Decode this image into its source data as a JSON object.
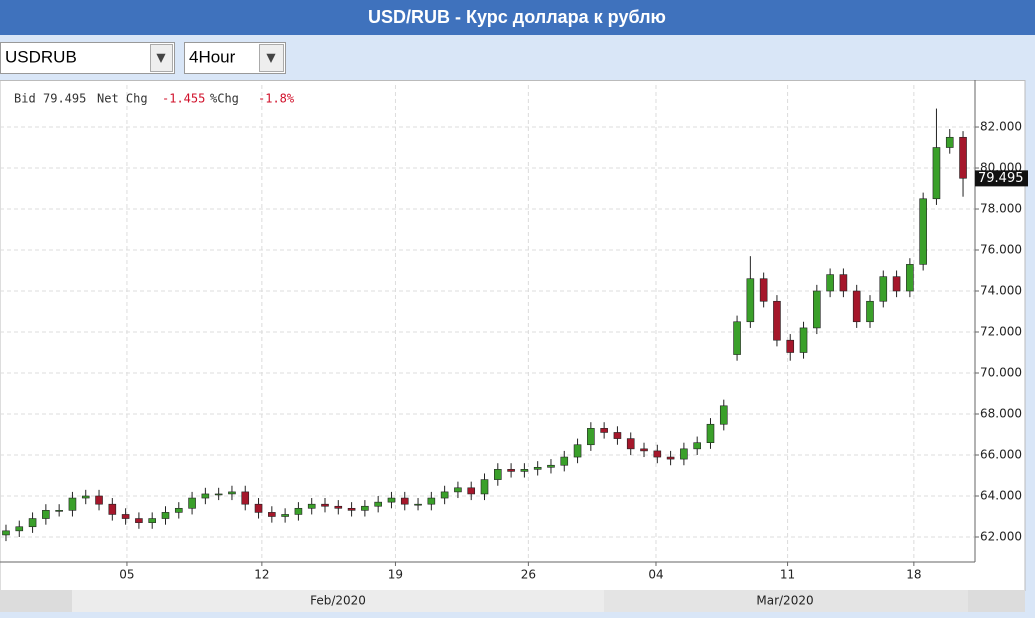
{
  "header": {
    "title": "USD/RUB - Курс доллара к рублю"
  },
  "toolbar": {
    "symbol": "USDRUB",
    "interval": "4Hour",
    "arrow": "▼"
  },
  "info": {
    "bid_label": "Bid",
    "net_change_label": "Net Chg",
    "net_change": -1.455,
    "pct_change_label": "%Chg",
    "pct_change": "-1.8%"
  },
  "chart_data": {
    "type": "candlestick",
    "last_price": 79.495,
    "x": [
      0,
      1,
      2,
      3,
      4,
      5,
      6,
      7,
      8,
      9,
      10,
      11,
      12,
      13,
      14,
      15,
      16,
      17,
      18,
      19,
      20,
      21,
      22,
      23,
      24,
      25,
      26,
      27,
      28,
      29,
      30,
      31,
      32,
      33,
      34,
      35,
      36,
      37,
      38,
      39,
      40,
      41,
      42,
      43,
      44,
      45,
      46,
      47,
      48,
      49,
      50,
      51,
      52,
      53,
      54,
      55,
      56,
      57,
      58,
      59,
      60,
      61,
      62,
      63,
      64,
      65,
      66,
      67,
      68,
      69,
      70,
      71,
      72
    ],
    "open": [
      62.1,
      62.3,
      62.5,
      62.9,
      63.3,
      63.3,
      63.9,
      64.0,
      63.6,
      63.1,
      62.9,
      62.7,
      62.9,
      63.2,
      63.4,
      63.9,
      64.1,
      64.1,
      64.2,
      63.6,
      63.2,
      63.0,
      63.1,
      63.4,
      63.6,
      63.5,
      63.4,
      63.3,
      63.5,
      63.7,
      63.9,
      63.6,
      63.6,
      63.9,
      64.2,
      64.4,
      64.1,
      64.8,
      65.3,
      65.2,
      65.3,
      65.4,
      65.5,
      65.9,
      66.5,
      67.3,
      67.1,
      66.8,
      66.3,
      66.2,
      65.9,
      65.8,
      66.3,
      66.6,
      67.5,
      70.9,
      72.5,
      74.6,
      73.5,
      71.6,
      71.0,
      72.2,
      74.0,
      74.8,
      74.0,
      72.5,
      73.5,
      74.7,
      74.0,
      75.3,
      78.5,
      81.0,
      81.5
    ],
    "high": [
      62.6,
      62.8,
      63.2,
      63.6,
      63.6,
      64.2,
      64.3,
      64.3,
      63.9,
      63.4,
      63.2,
      63.2,
      63.5,
      63.7,
      64.2,
      64.4,
      64.4,
      64.5,
      64.5,
      63.9,
      63.5,
      63.4,
      63.7,
      63.9,
      63.9,
      63.8,
      63.7,
      63.8,
      64.0,
      64.2,
      64.2,
      63.9,
      64.2,
      64.5,
      64.7,
      64.7,
      65.1,
      65.6,
      65.6,
      65.6,
      65.7,
      65.8,
      66.2,
      66.8,
      67.6,
      67.6,
      67.4,
      67.1,
      66.6,
      66.5,
      66.2,
      66.6,
      66.9,
      67.8,
      68.7,
      72.8,
      75.7,
      74.9,
      73.8,
      71.9,
      72.5,
      74.3,
      75.1,
      75.1,
      74.3,
      73.8,
      75.0,
      75.0,
      75.6,
      78.8,
      82.9,
      81.9,
      81.8
    ],
    "low": [
      61.8,
      62.0,
      62.2,
      62.6,
      63.0,
      63.0,
      63.6,
      63.3,
      62.8,
      62.6,
      62.4,
      62.4,
      62.6,
      62.9,
      63.1,
      63.6,
      63.8,
      63.8,
      63.3,
      62.9,
      62.7,
      62.7,
      62.8,
      63.1,
      63.2,
      63.1,
      63.0,
      63.0,
      63.2,
      63.4,
      63.3,
      63.3,
      63.3,
      63.6,
      63.9,
      63.8,
      63.8,
      64.5,
      64.9,
      64.9,
      65.0,
      65.1,
      65.2,
      65.6,
      66.2,
      66.8,
      66.5,
      66.0,
      65.9,
      65.6,
      65.5,
      65.5,
      66.0,
      66.3,
      67.2,
      70.6,
      72.2,
      73.2,
      71.3,
      70.6,
      70.7,
      71.9,
      73.7,
      73.7,
      72.2,
      72.2,
      73.2,
      73.7,
      73.7,
      75.0,
      78.2,
      80.7,
      78.6
    ],
    "close": [
      62.3,
      62.5,
      62.9,
      63.3,
      63.3,
      63.9,
      64.0,
      63.6,
      63.1,
      62.9,
      62.7,
      62.9,
      63.2,
      63.4,
      63.9,
      64.1,
      64.1,
      64.2,
      63.6,
      63.2,
      63.0,
      63.1,
      63.4,
      63.6,
      63.5,
      63.4,
      63.3,
      63.5,
      63.7,
      63.9,
      63.6,
      63.6,
      63.9,
      64.2,
      64.4,
      64.1,
      64.8,
      65.3,
      65.2,
      65.3,
      65.4,
      65.5,
      65.9,
      66.5,
      67.3,
      67.1,
      66.8,
      66.3,
      66.2,
      65.9,
      65.8,
      66.3,
      66.6,
      67.5,
      68.4,
      72.5,
      74.6,
      73.5,
      71.6,
      71.0,
      72.2,
      74.0,
      74.8,
      74.0,
      72.5,
      73.5,
      74.7,
      74.0,
      75.3,
      78.5,
      81.0,
      81.5,
      79.5
    ],
    "up_color": "#3aa02a",
    "down_color": "#a5172b",
    "xlim": [
      -0.45,
      72.9
    ],
    "xticks": [
      {
        "value": 9.1,
        "label": "05"
      },
      {
        "value": 19.25,
        "label": "12"
      },
      {
        "value": 29.3,
        "label": "19"
      },
      {
        "value": 39.3,
        "label": "26"
      },
      {
        "value": 48.9,
        "label": "04"
      },
      {
        "value": 58.8,
        "label": "11"
      },
      {
        "value": 68.3,
        "label": "18"
      }
    ],
    "periods": [
      "Feb/2020",
      "Mar/2020"
    ],
    "ylim": [
      60.78,
      84.05
    ],
    "yticks": [
      {
        "value": 62,
        "label": "62.000"
      },
      {
        "value": 64,
        "label": "64.000"
      },
      {
        "value": 66,
        "label": "66.000"
      },
      {
        "value": 68,
        "label": "68.000"
      },
      {
        "value": 70,
        "label": "70.000"
      },
      {
        "value": 72,
        "label": "72.000"
      },
      {
        "value": 74,
        "label": "74.000"
      },
      {
        "value": 76,
        "label": "76.000"
      },
      {
        "value": 78,
        "label": "78.000"
      },
      {
        "value": 80,
        "label": "80.000"
      },
      {
        "value": 82,
        "label": "82.000"
      }
    ],
    "grid": true
  }
}
